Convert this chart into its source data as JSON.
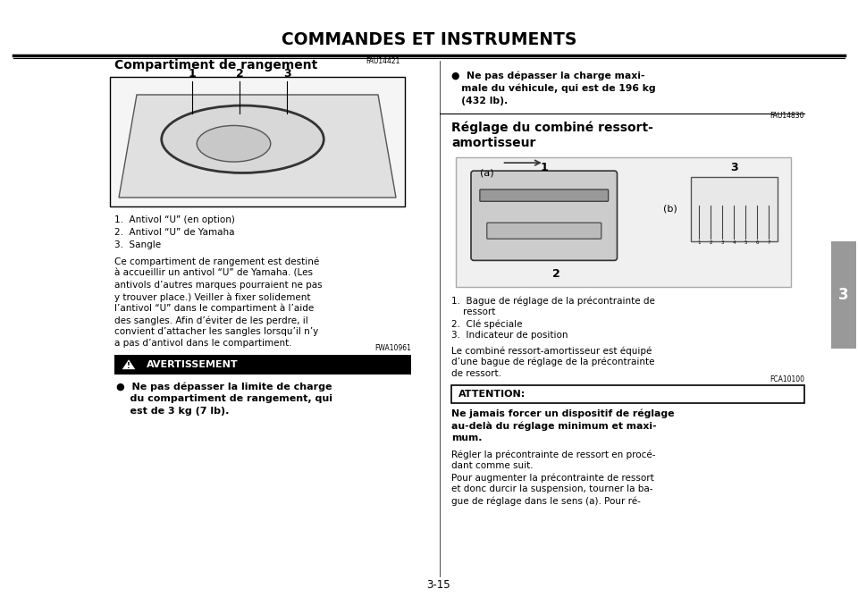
{
  "bg_color": "#ffffff",
  "page_width": 9.6,
  "page_height": 6.78,
  "header_title": "COMMANDES ET INSTRUMENTS",
  "right_tab_text": "3",
  "page_number": "3-15",
  "section1_code": "FAU14421",
  "section1_title": "Compartiment de rangement",
  "fig1_labels": [
    "1",
    "2",
    "3"
  ],
  "fig1_items": [
    "1.  Antivol “U” (en option)",
    "2.  Antivol “U” de Yamaha",
    "3.  Sangle"
  ],
  "section1_body_lines": [
    "Ce compartiment de rangement est destiné",
    "à accueillir un antivol “U” de Yamaha. (Les",
    "antivols d’autres marques pourraient ne pas",
    "y trouver place.) Veiller à fixer solidement",
    "l’antivol “U” dans le compartiment à l’aide",
    "des sangles. Afin d’éviter de les perdre, il",
    "convient d’attacher les sangles lorsqu’il n’y",
    "a pas d’antivol dans le compartiment."
  ],
  "warning_code": "FWA10961",
  "warning_label": "AVERTISSEMENT",
  "warning_bullet_lines": [
    "●  Ne pas dépasser la limite de charge",
    "    du compartiment de rangement, qui",
    "    est de 3 kg (7 lb)."
  ],
  "right_bullet_lines": [
    "●  Ne pas dépasser la charge maxi-",
    "   male du véhicule, qui est de 196 kg",
    "   (432 lb)."
  ],
  "section2_code": "FAU14830",
  "section2_title_lines": [
    "Réglage du combiné ressort-",
    "amortisseur"
  ],
  "fig2_items_lines": [
    "1.  Bague de réglage de la précontrainte de",
    "    ressort",
    "2.  Clé spéciale",
    "3.  Indicateur de position"
  ],
  "section2_body_lines": [
    "Le combiné ressort-amortisseur est équipé",
    "d’une bague de réglage de la précontrainte",
    "de ressort."
  ],
  "attention_code": "FCA10100",
  "attention_label": "ATTENTION:",
  "attention_body_lines": [
    "Ne jamais forcer un dispositif de réglage",
    "au-delà du réglage minimum et maxi-",
    "mum."
  ],
  "section2_body2_lines": [
    "Régler la précontrainte de ressort en procé-",
    "dant comme suit.",
    "Pour augmenter la précontrainte de ressort",
    "et donc durcir la suspension, tourner la ba-",
    "gue de réglage dans le sens (a). Pour ré-"
  ]
}
